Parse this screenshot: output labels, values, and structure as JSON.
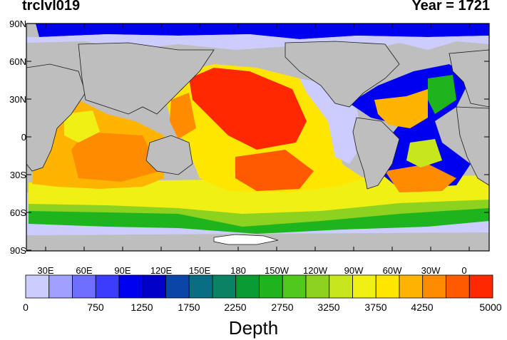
{
  "header": {
    "variable": "trclvl019",
    "year_label": "Year = 1721"
  },
  "map": {
    "lat_labels": [
      "90N",
      "60N",
      "30N",
      "0",
      "30S",
      "60S",
      "90S"
    ],
    "lon_labels": [
      "30E",
      "60E",
      "90E",
      "120E",
      "150E",
      "180",
      "150W",
      "120W",
      "90W",
      "60W",
      "30W",
      "0"
    ],
    "colors": {
      "land": "#bebebe",
      "antarctic_ice": "#ffffff",
      "coastline": "#1a1a1a"
    }
  },
  "colorbar": {
    "title": "Depth",
    "labels": [
      "0",
      "750",
      "1250",
      "1750",
      "2250",
      "2750",
      "3250",
      "3750",
      "4250",
      "5000"
    ],
    "colors": [
      "#ccccff",
      "#a0a0ff",
      "#6e6eff",
      "#3c3cff",
      "#0000f0",
      "#0000c8",
      "#0a46a8",
      "#0a6e82",
      "#0a8264",
      "#0a9b32",
      "#1eb41e",
      "#50c81e",
      "#8cd21e",
      "#c8e61e",
      "#f0f014",
      "#ffe600",
      "#ffb400",
      "#ff8c00",
      "#ff5a00",
      "#ff2800"
    ]
  }
}
